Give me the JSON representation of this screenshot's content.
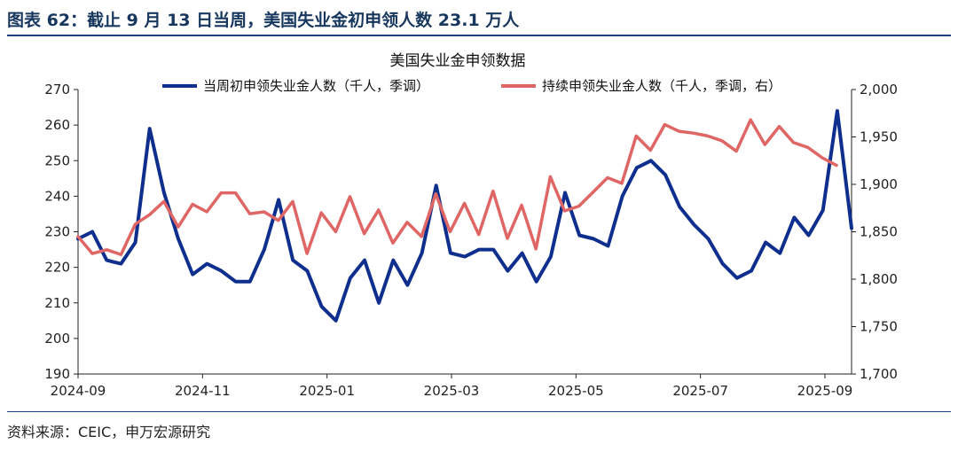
{
  "header": {
    "figure_title": "图表 62：截止 9 月 13 日当周，美国失业金初申领人数 23.1 万人"
  },
  "footer": {
    "source": "资料来源：CEIC，申万宏源研究"
  },
  "colors": {
    "initial_claims": "#0f2f8f",
    "continuing_claims": "#e06666",
    "rule": "#1f3f7f"
  },
  "chart_data": {
    "type": "line",
    "title": "美国失业金申领数据",
    "x_labels": [
      "2024-09",
      "2024-11",
      "2025-01",
      "2025-03",
      "2025-05",
      "2025-07",
      "2025-09"
    ],
    "y_left": {
      "range": [
        190,
        270
      ],
      "ticks": [
        "190",
        "200",
        "210",
        "220",
        "230",
        "240",
        "250",
        "260",
        "270"
      ]
    },
    "y_right": {
      "range": [
        1700,
        2000
      ],
      "ticks": [
        "1,700",
        "1,750",
        "1,800",
        "1,850",
        "1,900",
        "1,950",
        "2,000"
      ]
    },
    "grid": false,
    "legend_position": "top",
    "series": [
      {
        "name": "当周初申领失业金人数（千人，季调）",
        "axis": "left",
        "values": [
          228,
          230,
          222,
          221,
          227,
          259,
          241,
          228,
          218,
          221,
          219,
          216,
          216,
          225,
          239,
          222,
          219,
          209,
          205,
          217,
          222,
          210,
          222,
          215,
          224,
          243,
          224,
          223,
          225,
          225,
          219,
          224,
          216,
          223,
          241,
          229,
          228,
          226,
          240,
          248,
          250,
          246,
          237,
          232,
          228,
          221,
          217,
          219,
          227,
          224,
          234,
          229,
          236,
          264,
          231
        ]
      },
      {
        "name": "持续申领失业金人数（千人，季调，右）",
        "axis": "right",
        "values": [
          1845,
          1827,
          1831,
          1826,
          1858,
          1868,
          1882,
          1855,
          1879,
          1871,
          1891,
          1891,
          1869,
          1871,
          1862,
          1882,
          1827,
          1870,
          1850,
          1887,
          1848,
          1873,
          1838,
          1860,
          1845,
          1890,
          1850,
          1880,
          1847,
          1893,
          1843,
          1878,
          1832,
          1908,
          1872,
          1877,
          1892,
          1907,
          1901,
          1951,
          1936,
          1963,
          1956,
          1954,
          1951,
          1946,
          1935,
          1968,
          1942,
          1961,
          1944,
          1939,
          1928,
          1920
        ]
      }
    ]
  }
}
